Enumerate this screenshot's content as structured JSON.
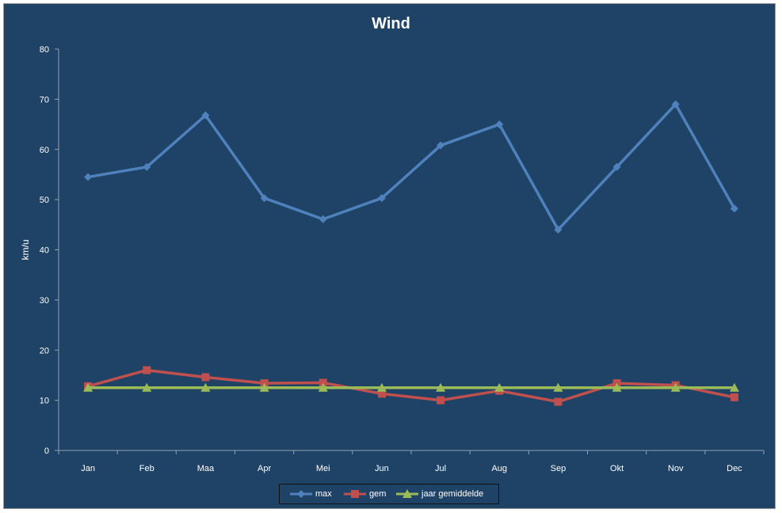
{
  "chart_data": {
    "type": "line",
    "title": "Wind",
    "xlabel": "",
    "ylabel": "km/u",
    "categories": [
      "Jan",
      "Feb",
      "Maa",
      "Apr",
      "Mei",
      "Jun",
      "Jul",
      "Aug",
      "Sep",
      "Okt",
      "Nov",
      "Dec"
    ],
    "ylim": [
      0,
      80
    ],
    "yticks": [
      0,
      10,
      20,
      30,
      40,
      50,
      60,
      70,
      80
    ],
    "grid": false,
    "legend_position": "bottom",
    "series": [
      {
        "name": "max",
        "color": "#4f81bd",
        "marker": "diamond",
        "values": [
          54.5,
          56.5,
          66.8,
          50.3,
          46.1,
          50.3,
          60.8,
          65,
          44,
          56.5,
          69,
          48.2
        ]
      },
      {
        "name": "gem",
        "color": "#c0504d",
        "marker": "square",
        "values": [
          12.8,
          16,
          14.6,
          13.4,
          13.5,
          11.3,
          10,
          11.9,
          9.7,
          13.4,
          13,
          10.6
        ]
      },
      {
        "name": "jaar gemiddelde",
        "color": "#9bbb59",
        "marker": "triangle",
        "values": [
          12.5,
          12.5,
          12.5,
          12.5,
          12.5,
          12.5,
          12.5,
          12.5,
          12.5,
          12.5,
          12.5,
          12.5
        ]
      }
    ]
  }
}
